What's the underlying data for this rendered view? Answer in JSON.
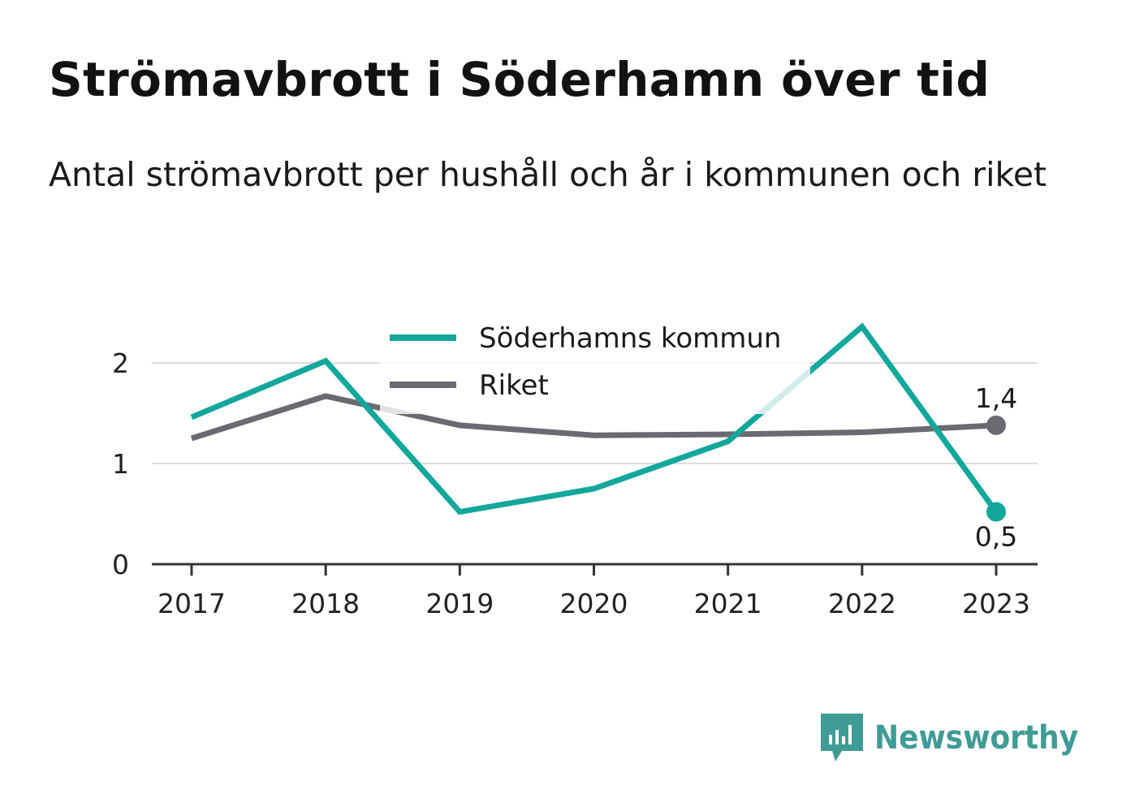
{
  "title": "Strömavbrott i Söderhamn över tid",
  "subtitle": "Antal strömavbrott per hushåll och år i kommunen och riket",
  "brand": "Newsworthy",
  "chart_data": {
    "type": "line",
    "title": "Strömavbrott i Söderhamn över tid",
    "subtitle": "Antal strömavbrott per hushåll och år i kommunen och riket",
    "xlabel": "",
    "ylabel": "",
    "x": [
      "2017",
      "2018",
      "2019",
      "2020",
      "2021",
      "2022",
      "2023"
    ],
    "ylim": [
      0,
      2.4
    ],
    "yticks": [
      0,
      1,
      2
    ],
    "ytick_labels": [
      "0",
      "1",
      "2"
    ],
    "grid": true,
    "legend_position": "top-center",
    "series": [
      {
        "name": "Söderhamns kommun",
        "color": "#14a79c",
        "values": [
          1.46,
          2.02,
          0.52,
          0.75,
          1.22,
          2.36,
          0.52
        ],
        "end_label": "0,5"
      },
      {
        "name": "Riket",
        "color": "#6b6a70",
        "values": [
          1.25,
          1.67,
          1.38,
          1.28,
          1.29,
          1.31,
          1.38
        ],
        "end_label": "1,4"
      }
    ]
  }
}
